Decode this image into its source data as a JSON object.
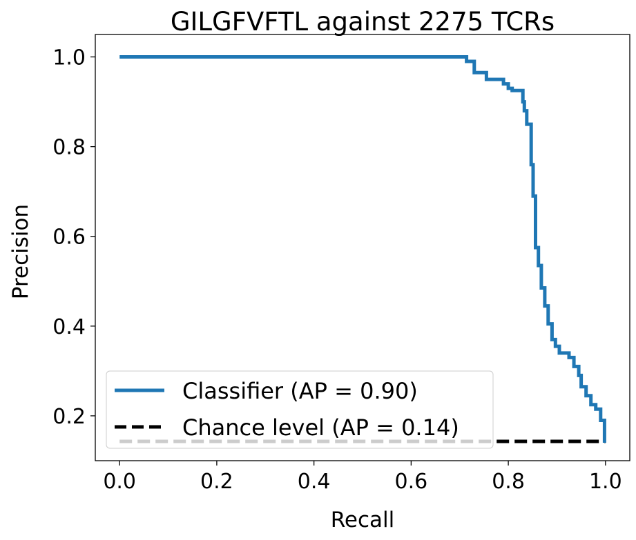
{
  "chart_data": {
    "type": "line",
    "title": "GILGFVFTL against 2275 TCRs",
    "xlabel": "Recall",
    "ylabel": "Precision",
    "xlim": [
      -0.05,
      1.05
    ],
    "ylim": [
      0.1,
      1.05
    ],
    "xticks": [
      "0.0",
      "0.2",
      "0.4",
      "0.6",
      "0.8",
      "1.0"
    ],
    "yticks": [
      "0.2",
      "0.4",
      "0.6",
      "0.8",
      "1.0"
    ],
    "grid": false,
    "legend_position": "lower-left",
    "series": [
      {
        "name": "Classifier (AP = 0.90)",
        "color": "#1f77b4",
        "style": "solid-step",
        "x": [
          0.0,
          0.714,
          0.714,
          0.73,
          0.73,
          0.755,
          0.755,
          0.79,
          0.79,
          0.8,
          0.8,
          0.808,
          0.808,
          0.83,
          0.83,
          0.833,
          0.833,
          0.838,
          0.838,
          0.847,
          0.847,
          0.851,
          0.851,
          0.856,
          0.856,
          0.862,
          0.862,
          0.868,
          0.868,
          0.875,
          0.875,
          0.882,
          0.882,
          0.89,
          0.89,
          0.897,
          0.897,
          0.905,
          0.905,
          0.925,
          0.925,
          0.935,
          0.935,
          0.945,
          0.945,
          0.95,
          0.95,
          0.96,
          0.96,
          0.97,
          0.97,
          0.98,
          0.98,
          0.99,
          0.99,
          0.998,
          0.998
        ],
        "y": [
          1.0,
          1.0,
          0.99,
          0.99,
          0.965,
          0.965,
          0.95,
          0.95,
          0.94,
          0.94,
          0.93,
          0.93,
          0.925,
          0.925,
          0.9,
          0.9,
          0.88,
          0.88,
          0.85,
          0.85,
          0.76,
          0.76,
          0.69,
          0.69,
          0.575,
          0.575,
          0.535,
          0.535,
          0.485,
          0.485,
          0.445,
          0.445,
          0.405,
          0.405,
          0.37,
          0.37,
          0.355,
          0.355,
          0.34,
          0.34,
          0.33,
          0.33,
          0.31,
          0.31,
          0.29,
          0.29,
          0.265,
          0.265,
          0.245,
          0.245,
          0.225,
          0.225,
          0.215,
          0.215,
          0.19,
          0.19,
          0.14
        ]
      },
      {
        "name": "Chance level (AP = 0.14)",
        "color": "#000000",
        "style": "dashed",
        "x": [
          0.0,
          1.0
        ],
        "y": [
          0.143,
          0.143
        ]
      }
    ]
  }
}
